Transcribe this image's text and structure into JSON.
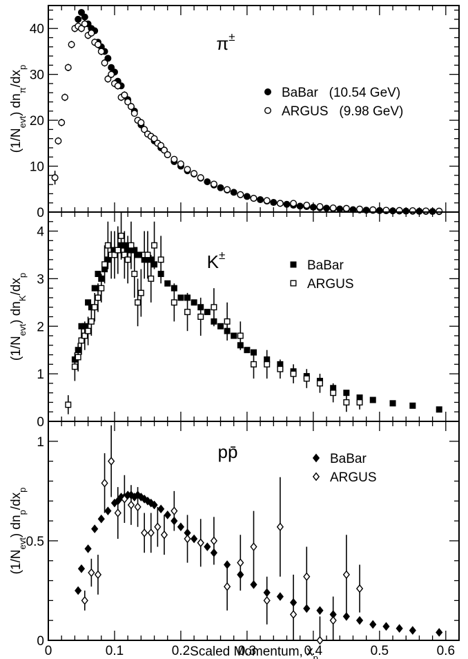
{
  "chart_data": [
    {
      "type": "scatter",
      "panel_label": "π±",
      "ylabel": "(1/Nevt) dnπ/dxp",
      "xlim": [
        0,
        0.62
      ],
      "ylim": [
        0,
        45
      ],
      "yticks": [
        0,
        10,
        20,
        30,
        40
      ],
      "legend_position": "right",
      "series": [
        {
          "name": "BaBar (10.54 GeV)",
          "marker": "filled-circle",
          "x": [
            0.045,
            0.05,
            0.055,
            0.06,
            0.065,
            0.07,
            0.075,
            0.08,
            0.085,
            0.09,
            0.095,
            0.1,
            0.105,
            0.11,
            0.115,
            0.12,
            0.125,
            0.13,
            0.135,
            0.14,
            0.145,
            0.15,
            0.155,
            0.16,
            0.165,
            0.17,
            0.175,
            0.18,
            0.19,
            0.2,
            0.21,
            0.22,
            0.23,
            0.24,
            0.25,
            0.26,
            0.27,
            0.28,
            0.29,
            0.3,
            0.31,
            0.32,
            0.33,
            0.34,
            0.35,
            0.36,
            0.37,
            0.38,
            0.39,
            0.4,
            0.41,
            0.42,
            0.43,
            0.44,
            0.45,
            0.46,
            0.47,
            0.48,
            0.49,
            0.5,
            0.51,
            0.52,
            0.53,
            0.54,
            0.55,
            0.56,
            0.57,
            0.58,
            0.59
          ],
          "y": [
            42.0,
            43.5,
            42.5,
            41.0,
            40.0,
            39.5,
            37.0,
            36.0,
            35.0,
            33.5,
            31.5,
            30.5,
            28.5,
            27.5,
            25.5,
            24.5,
            23.0,
            22.0,
            20.0,
            19.0,
            18.0,
            17.0,
            16.5,
            15.5,
            15.0,
            14.0,
            13.5,
            12.5,
            11.0,
            10.0,
            9.0,
            8.3,
            7.4,
            6.6,
            5.9,
            5.3,
            4.8,
            4.3,
            3.8,
            3.4,
            3.0,
            2.7,
            2.4,
            2.1,
            1.9,
            1.7,
            1.5,
            1.3,
            1.2,
            1.05,
            0.95,
            0.85,
            0.75,
            0.67,
            0.6,
            0.53,
            0.47,
            0.42,
            0.37,
            0.33,
            0.29,
            0.26,
            0.23,
            0.21,
            0.19,
            0.17,
            0.15,
            0.13,
            0.12
          ]
        },
        {
          "name": "ARGUS (9.98 GeV)",
          "marker": "open-circle",
          "x": [
            0.01,
            0.015,
            0.02,
            0.025,
            0.03,
            0.035,
            0.04,
            0.045,
            0.05,
            0.055,
            0.06,
            0.065,
            0.07,
            0.075,
            0.08,
            0.085,
            0.09,
            0.095,
            0.1,
            0.105,
            0.11,
            0.115,
            0.12,
            0.125,
            0.13,
            0.135,
            0.14,
            0.145,
            0.15,
            0.155,
            0.16,
            0.165,
            0.17,
            0.175,
            0.18,
            0.19,
            0.2,
            0.21,
            0.22,
            0.23,
            0.25,
            0.27,
            0.29,
            0.31,
            0.33,
            0.35,
            0.37,
            0.39,
            0.41,
            0.43,
            0.45,
            0.47,
            0.49,
            0.51,
            0.53,
            0.55,
            0.57,
            0.59
          ],
          "y": [
            7.5,
            15.5,
            19.5,
            25.0,
            31.5,
            36.5,
            40.0,
            40.5,
            40.0,
            41.0,
            38.5,
            39.0,
            37.0,
            36.5,
            35.0,
            32.5,
            29.0,
            30.0,
            28.0,
            27.5,
            25.0,
            25.5,
            24.0,
            23.0,
            21.5,
            20.0,
            19.5,
            18.0,
            17.0,
            16.5,
            16.0,
            15.0,
            14.5,
            13.5,
            12.5,
            11.5,
            10.5,
            9.3,
            8.4,
            7.5,
            6.1,
            4.9,
            3.8,
            3.0,
            2.5,
            1.9,
            1.9,
            1.5,
            1.2,
            0.9,
            0.8,
            0.65,
            0.5,
            0.4,
            0.35,
            0.3,
            0.25,
            0.2
          ],
          "err": [
            1.5,
            0.8,
            0.8,
            0.8,
            0.8,
            0.8,
            0.8,
            0.8,
            0.8,
            0.8,
            0.8,
            0.8,
            0.8,
            0.8,
            0.8,
            0.8,
            0.8,
            0.8,
            0.8,
            0.8,
            0.8,
            0.8,
            0.7,
            0.7,
            0.6,
            0.6,
            0.6,
            0.6,
            0.5,
            0.5,
            0.5,
            0.5,
            0.5,
            0.4,
            0.4,
            0.4,
            0.4,
            0.3,
            0.3,
            0.3,
            0.3,
            0.3,
            0.3,
            0.3,
            0.3,
            0.3,
            0.3,
            0.3,
            0.2,
            0.2,
            0.2,
            0.2,
            0.2,
            0.2,
            0.2,
            0.2,
            0.2,
            0.2
          ]
        }
      ]
    },
    {
      "type": "scatter",
      "panel_label": "K±",
      "ylabel": "(1/Nevt) dnK/dxp",
      "xlim": [
        0,
        0.62
      ],
      "ylim": [
        0,
        4.4
      ],
      "yticks": [
        0,
        1,
        2,
        3,
        4
      ],
      "legend_position": "right",
      "series": [
        {
          "name": "BaBar",
          "marker": "filled-square",
          "x": [
            0.04,
            0.045,
            0.05,
            0.055,
            0.06,
            0.065,
            0.07,
            0.075,
            0.08,
            0.085,
            0.09,
            0.095,
            0.1,
            0.105,
            0.11,
            0.115,
            0.12,
            0.125,
            0.13,
            0.135,
            0.14,
            0.145,
            0.15,
            0.155,
            0.16,
            0.17,
            0.18,
            0.19,
            0.2,
            0.21,
            0.22,
            0.23,
            0.24,
            0.25,
            0.26,
            0.27,
            0.28,
            0.29,
            0.3,
            0.31,
            0.33,
            0.35,
            0.37,
            0.39,
            0.41,
            0.43,
            0.45,
            0.47,
            0.49,
            0.52,
            0.55,
            0.59
          ],
          "y": [
            1.3,
            1.5,
            2.0,
            2.0,
            2.5,
            2.4,
            2.8,
            3.1,
            3.0,
            3.2,
            3.4,
            3.5,
            3.6,
            3.6,
            3.7,
            3.7,
            3.6,
            3.6,
            3.6,
            3.5,
            3.5,
            3.4,
            3.4,
            3.4,
            3.3,
            3.1,
            2.9,
            2.8,
            2.6,
            2.6,
            2.5,
            2.4,
            2.3,
            2.1,
            2.0,
            1.9,
            1.8,
            1.6,
            1.5,
            1.45,
            1.3,
            1.2,
            1.05,
            0.95,
            0.85,
            0.7,
            0.6,
            0.5,
            0.45,
            0.38,
            0.33,
            0.25
          ]
        },
        {
          "name": "ARGUS",
          "marker": "open-square",
          "x": [
            0.03,
            0.04,
            0.045,
            0.05,
            0.055,
            0.06,
            0.065,
            0.07,
            0.075,
            0.08,
            0.085,
            0.09,
            0.095,
            0.1,
            0.105,
            0.11,
            0.115,
            0.12,
            0.125,
            0.13,
            0.135,
            0.14,
            0.145,
            0.15,
            0.155,
            0.16,
            0.17,
            0.19,
            0.21,
            0.23,
            0.25,
            0.27,
            0.29,
            0.31,
            0.33,
            0.35,
            0.37,
            0.39,
            0.41,
            0.43,
            0.45,
            0.47
          ],
          "y": [
            0.35,
            1.15,
            1.35,
            1.7,
            1.8,
            1.9,
            2.1,
            2.4,
            2.6,
            2.8,
            3.3,
            3.7,
            3.5,
            3.5,
            3.6,
            3.9,
            3.5,
            3.4,
            3.7,
            3.1,
            2.5,
            2.7,
            3.5,
            3.5,
            3.0,
            3.7,
            3.4,
            2.5,
            2.3,
            2.2,
            2.4,
            2.1,
            1.8,
            1.2,
            1.2,
            1.1,
            1.0,
            0.9,
            0.8,
            0.6,
            0.4,
            0.4
          ],
          "err": [
            0.2,
            0.3,
            0.3,
            0.3,
            0.3,
            0.3,
            0.3,
            0.3,
            0.3,
            0.3,
            0.4,
            0.5,
            0.5,
            0.5,
            0.5,
            0.5,
            0.5,
            0.5,
            0.5,
            0.5,
            0.5,
            0.5,
            0.5,
            0.5,
            0.5,
            0.5,
            0.5,
            0.4,
            0.4,
            0.4,
            0.4,
            0.4,
            0.3,
            0.3,
            0.3,
            0.2,
            0.2,
            0.2,
            0.2,
            0.2,
            0.2,
            0.15
          ]
        }
      ]
    },
    {
      "type": "scatter",
      "panel_label": "pp̄",
      "ylabel": "(1/Nevt) dnp/dxp",
      "xlabel": "Scaled Momentum, xp",
      "xlim": [
        0,
        0.62
      ],
      "xticks": [
        0,
        0.1,
        0.2,
        0.3,
        0.4,
        0.5,
        0.6
      ],
      "ylim": [
        0,
        1.1
      ],
      "yticks": [
        0,
        0.5,
        1
      ],
      "legend_position": "right",
      "series": [
        {
          "name": "BaBar",
          "marker": "filled-diamond",
          "x": [
            0.045,
            0.05,
            0.06,
            0.07,
            0.08,
            0.09,
            0.1,
            0.105,
            0.11,
            0.115,
            0.12,
            0.125,
            0.13,
            0.135,
            0.14,
            0.145,
            0.15,
            0.155,
            0.16,
            0.17,
            0.18,
            0.19,
            0.2,
            0.21,
            0.22,
            0.23,
            0.24,
            0.25,
            0.27,
            0.29,
            0.31,
            0.33,
            0.35,
            0.37,
            0.39,
            0.41,
            0.43,
            0.45,
            0.47,
            0.49,
            0.51,
            0.53,
            0.55,
            0.59
          ],
          "y": [
            0.25,
            0.36,
            0.46,
            0.56,
            0.61,
            0.65,
            0.69,
            0.7,
            0.72,
            0.72,
            0.73,
            0.73,
            0.72,
            0.73,
            0.72,
            0.71,
            0.7,
            0.69,
            0.68,
            0.66,
            0.63,
            0.6,
            0.57,
            0.54,
            0.51,
            0.49,
            0.47,
            0.44,
            0.38,
            0.33,
            0.28,
            0.24,
            0.22,
            0.19,
            0.16,
            0.15,
            0.13,
            0.12,
            0.1,
            0.08,
            0.07,
            0.06,
            0.05,
            0.04
          ]
        },
        {
          "name": "ARGUS",
          "marker": "open-diamond",
          "x": [
            0.055,
            0.065,
            0.075,
            0.085,
            0.095,
            0.105,
            0.115,
            0.125,
            0.135,
            0.145,
            0.155,
            0.165,
            0.175,
            0.19,
            0.21,
            0.23,
            0.25,
            0.27,
            0.29,
            0.31,
            0.33,
            0.35,
            0.37,
            0.39,
            0.41,
            0.43,
            0.45,
            0.47
          ],
          "y": [
            0.2,
            0.34,
            0.33,
            0.79,
            0.9,
            0.64,
            0.71,
            0.68,
            0.67,
            0.54,
            0.54,
            0.57,
            0.53,
            0.65,
            0.51,
            0.49,
            0.5,
            0.27,
            0.39,
            0.47,
            0.2,
            0.57,
            0.13,
            0.32,
            0.0,
            0.1,
            0.33,
            0.26
          ],
          "err": [
            0.05,
            0.07,
            0.1,
            0.15,
            0.18,
            0.13,
            0.12,
            0.1,
            0.1,
            0.1,
            0.1,
            0.1,
            0.1,
            0.1,
            0.12,
            0.12,
            0.12,
            0.12,
            0.14,
            0.18,
            0.12,
            0.25,
            0.2,
            0.15,
            0.12,
            0.12,
            0.2,
            0.12
          ]
        }
      ]
    }
  ]
}
